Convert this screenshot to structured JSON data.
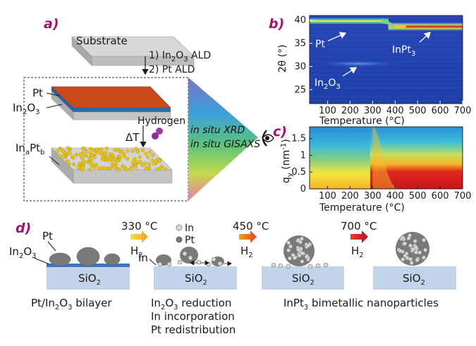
{
  "panels": {
    "a": "a)",
    "b": "b)",
    "c": "c)",
    "d": "d)"
  },
  "panel_a": {
    "substrate": "Substrate",
    "step1": "1) In",
    "step1_sub": "2",
    "step1_o": "O",
    "step1_sub2": "3",
    "step1_end": " ALD",
    "step2": "2) Pt ALD",
    "pt": "Pt",
    "in2o3_in": "In",
    "in2o3_2": "2",
    "in2o3_o": "O",
    "in2o3_3": "3",
    "hydrogen": "Hydrogen",
    "delta_t": "ΔT",
    "inapb_in": "In",
    "inapb_a": "a",
    "inapb_pt": "Pt",
    "inapb_b": "b",
    "xrd": "in situ XRD",
    "gisaxs": "in situ GISAXS"
  },
  "chart_data": [
    {
      "type": "heatmap",
      "id": "b",
      "xlabel": "Temperature (°C)",
      "ylabel": "2θ (°)",
      "xticks": [
        100,
        200,
        300,
        400,
        500,
        600,
        700
      ],
      "yticks": [
        25,
        30,
        35,
        40
      ],
      "xlim": [
        20,
        700
      ],
      "ylim": [
        22,
        41
      ],
      "annotations": {
        "pt": "Pt",
        "inpt3": "InPt",
        "inpt3_sub": "3",
        "in2o3": "In",
        "in2o3_2": "2",
        "in2o3_o": "O",
        "in2o3_3": "3"
      },
      "features": [
        {
          "name": "Pt",
          "two_theta": 39.8,
          "t_start": 20,
          "t_end": 370
        },
        {
          "name": "InPt3",
          "two_theta": 38.6,
          "t_start": 370,
          "t_end": 700
        },
        {
          "name": "In2O3",
          "two_theta": 30.6,
          "t_start": 20,
          "t_end": 330
        }
      ]
    },
    {
      "type": "heatmap",
      "id": "c",
      "xlabel": "Temperature (°C)",
      "ylabel": "qy (nm-1)",
      "ylabel_main": "q",
      "ylabel_sub": "y",
      "ylabel_unit": " (nm",
      "ylabel_sup": "-1",
      "ylabel_close": ")",
      "xticks": [
        100,
        200,
        300,
        400,
        500,
        600,
        700
      ],
      "yticks": [
        0,
        0.5,
        1,
        1.5
      ],
      "ytick_labels": [
        "0",
        "0.5",
        "1",
        "1.5"
      ],
      "xlim": [
        20,
        700
      ],
      "ylim": [
        0,
        1.85
      ]
    }
  ],
  "panel_d": {
    "temp1": "330 °C",
    "temp2": "450 °C",
    "temp3": "700 °C",
    "h2": "H",
    "h2_sub": "2",
    "legend_in": "In",
    "legend_pt": "Pt",
    "pt": "Pt",
    "in2o3_in": "In",
    "in2o3_2": "2",
    "in2o3_o": "O",
    "in2o3_3": "3",
    "in_label": "In",
    "sio2": "SiO",
    "sio2_sub": "2",
    "caption1_a": "Pt/In",
    "caption1_2": "2",
    "caption1_b": "O",
    "caption1_3": "3",
    "caption1_c": " bilayer",
    "caption2_l1_a": "In",
    "caption2_l1_2": "2",
    "caption2_l1_b": "O",
    "caption2_l1_3": "3",
    "caption2_l1_c": " reduction",
    "caption2_l2": "In incorporation",
    "caption2_l3": "Pt redistribution",
    "caption3_a": "InPt",
    "caption3_3": "3",
    "caption3_b": " bimetallic nanoparticles"
  },
  "colors": {
    "panel_label": "#a0146e",
    "pt_layer": "#c94a1c",
    "in2o3_layer": "#2f6bb3",
    "substrate": "#c9c9c9",
    "dots": "#e6c51a",
    "sio2": "#c3d3ea"
  }
}
